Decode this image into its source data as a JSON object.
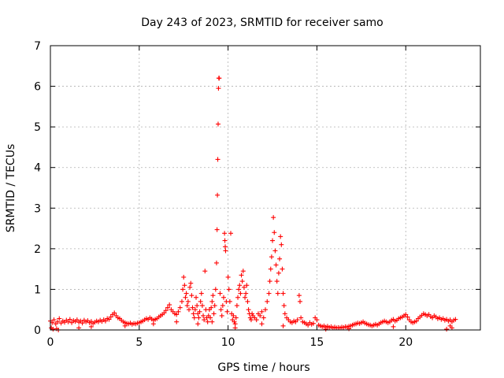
{
  "chart_data": {
    "type": "scatter",
    "title": "Day 243 of 2023, SRMTID for receiver samo",
    "xlabel": "GPS time / hours",
    "ylabel": "SRMTID / TECUs",
    "xlim": [
      0,
      24.2
    ],
    "ylim": [
      0,
      7
    ],
    "xticks": [
      "0",
      "5",
      "10",
      "15",
      "20"
    ],
    "yticks": [
      "0",
      "1",
      "2",
      "3",
      "4",
      "5",
      "6",
      "7"
    ],
    "xtick_values": [
      0,
      5,
      10,
      15,
      20
    ],
    "ytick_values": [
      0,
      1,
      2,
      3,
      4,
      5,
      6,
      7
    ],
    "grid": true,
    "marker": "+",
    "color": "#ff0000",
    "series": [
      {
        "name": "samo",
        "points": [
          [
            0.0,
            0.22
          ],
          [
            0.1,
            0.18
          ],
          [
            0.2,
            0.25
          ],
          [
            0.3,
            0.15
          ],
          [
            0.4,
            0.2
          ],
          [
            0.5,
            0.28
          ],
          [
            0.6,
            0.17
          ],
          [
            0.7,
            0.22
          ],
          [
            0.8,
            0.19
          ],
          [
            0.9,
            0.24
          ],
          [
            1.0,
            0.2
          ],
          [
            1.1,
            0.26
          ],
          [
            1.2,
            0.18
          ],
          [
            1.3,
            0.23
          ],
          [
            1.4,
            0.21
          ],
          [
            1.5,
            0.25
          ],
          [
            1.6,
            0.19
          ],
          [
            1.7,
            0.22
          ],
          [
            1.8,
            0.17
          ],
          [
            1.9,
            0.24
          ],
          [
            2.0,
            0.2
          ],
          [
            2.1,
            0.23
          ],
          [
            2.2,
            0.18
          ],
          [
            2.3,
            0.21
          ],
          [
            2.4,
            0.16
          ],
          [
            2.5,
            0.19
          ],
          [
            2.6,
            0.22
          ],
          [
            2.7,
            0.2
          ],
          [
            2.8,
            0.24
          ],
          [
            2.9,
            0.21
          ],
          [
            3.0,
            0.25
          ],
          [
            3.1,
            0.22
          ],
          [
            3.2,
            0.28
          ],
          [
            3.3,
            0.26
          ],
          [
            3.4,
            0.32
          ],
          [
            3.5,
            0.38
          ],
          [
            3.6,
            0.42
          ],
          [
            3.7,
            0.35
          ],
          [
            3.8,
            0.3
          ],
          [
            3.9,
            0.28
          ],
          [
            4.0,
            0.24
          ],
          [
            4.1,
            0.2
          ],
          [
            4.2,
            0.18
          ],
          [
            4.3,
            0.16
          ],
          [
            4.4,
            0.15
          ],
          [
            4.5,
            0.17
          ],
          [
            4.6,
            0.14
          ],
          [
            4.7,
            0.16
          ],
          [
            4.8,
            0.15
          ],
          [
            4.9,
            0.17
          ],
          [
            5.0,
            0.18
          ],
          [
            5.1,
            0.2
          ],
          [
            5.2,
            0.22
          ],
          [
            5.3,
            0.25
          ],
          [
            5.4,
            0.28
          ],
          [
            5.5,
            0.26
          ],
          [
            5.6,
            0.3
          ],
          [
            5.7,
            0.27
          ],
          [
            5.8,
            0.24
          ],
          [
            5.9,
            0.26
          ],
          [
            6.0,
            0.28
          ],
          [
            6.1,
            0.32
          ],
          [
            6.2,
            0.35
          ],
          [
            6.3,
            0.38
          ],
          [
            6.4,
            0.42
          ],
          [
            6.5,
            0.48
          ],
          [
            6.6,
            0.55
          ],
          [
            6.7,
            0.62
          ],
          [
            6.8,
            0.5
          ],
          [
            6.9,
            0.45
          ],
          [
            7.0,
            0.4
          ],
          [
            7.1,
            0.38
          ],
          [
            7.2,
            0.45
          ],
          [
            7.3,
            0.55
          ],
          [
            7.4,
            0.7
          ],
          [
            7.45,
            1.0
          ],
          [
            7.5,
            1.3
          ],
          [
            7.55,
            1.1
          ],
          [
            7.6,
            0.8
          ],
          [
            7.65,
            0.9
          ],
          [
            7.7,
            0.6
          ],
          [
            7.75,
            0.7
          ],
          [
            7.8,
            0.5
          ],
          [
            7.85,
            1.05
          ],
          [
            7.9,
            1.15
          ],
          [
            7.95,
            0.85
          ],
          [
            8.0,
            0.55
          ],
          [
            8.05,
            0.4
          ],
          [
            8.1,
            0.3
          ],
          [
            8.15,
            0.5
          ],
          [
            8.2,
            0.8
          ],
          [
            8.25,
            0.6
          ],
          [
            8.3,
            0.4
          ],
          [
            8.35,
            0.3
          ],
          [
            8.4,
            0.45
          ],
          [
            8.45,
            0.7
          ],
          [
            8.5,
            0.9
          ],
          [
            8.55,
            0.6
          ],
          [
            8.6,
            0.35
          ],
          [
            8.65,
            0.25
          ],
          [
            8.7,
            1.45
          ],
          [
            8.75,
            0.5
          ],
          [
            8.8,
            0.3
          ],
          [
            8.85,
            0.2
          ],
          [
            8.9,
            0.35
          ],
          [
            8.95,
            0.5
          ],
          [
            9.0,
            0.3
          ],
          [
            9.05,
            0.55
          ],
          [
            9.1,
            0.7
          ],
          [
            9.15,
            0.85
          ],
          [
            9.2,
            0.4
          ],
          [
            9.25,
            0.6
          ],
          [
            9.3,
            1.0
          ],
          [
            9.35,
            1.65
          ],
          [
            9.38,
            2.47
          ],
          [
            9.4,
            3.32
          ],
          [
            9.42,
            4.2
          ],
          [
            9.44,
            5.07
          ],
          [
            9.46,
            5.95
          ],
          [
            9.48,
            6.2
          ],
          [
            9.5,
            6.2
          ],
          [
            9.55,
            0.9
          ],
          [
            9.6,
            0.5
          ],
          [
            9.65,
            0.35
          ],
          [
            9.7,
            0.6
          ],
          [
            9.75,
            0.8
          ],
          [
            9.8,
            2.38
          ],
          [
            9.82,
            2.2
          ],
          [
            9.84,
            2.05
          ],
          [
            9.86,
            1.95
          ],
          [
            9.9,
            0.7
          ],
          [
            9.95,
            0.45
          ],
          [
            10.0,
            1.3
          ],
          [
            10.05,
            1.0
          ],
          [
            10.1,
            0.7
          ],
          [
            10.15,
            2.38
          ],
          [
            10.2,
            0.4
          ],
          [
            10.25,
            0.25
          ],
          [
            10.3,
            0.35
          ],
          [
            10.35,
            0.2
          ],
          [
            10.4,
            0.15
          ],
          [
            10.45,
            0.3
          ],
          [
            10.5,
            0.6
          ],
          [
            10.55,
            0.8
          ],
          [
            10.6,
            1.0
          ],
          [
            10.65,
            1.1
          ],
          [
            10.7,
            0.9
          ],
          [
            10.75,
            1.35
          ],
          [
            10.8,
            1.2
          ],
          [
            10.85,
            1.45
          ],
          [
            10.9,
            1.05
          ],
          [
            10.95,
            0.8
          ],
          [
            11.0,
            0.9
          ],
          [
            11.05,
            1.1
          ],
          [
            11.1,
            0.7
          ],
          [
            11.15,
            0.5
          ],
          [
            11.2,
            0.4
          ],
          [
            11.25,
            0.3
          ],
          [
            11.3,
            0.25
          ],
          [
            11.35,
            0.4
          ],
          [
            11.4,
            0.35
          ],
          [
            11.5,
            0.3
          ],
          [
            11.6,
            0.25
          ],
          [
            11.7,
            0.4
          ],
          [
            11.8,
            0.35
          ],
          [
            11.9,
            0.45
          ],
          [
            12.0,
            0.3
          ],
          [
            12.1,
            0.5
          ],
          [
            12.2,
            0.7
          ],
          [
            12.3,
            0.9
          ],
          [
            12.35,
            1.2
          ],
          [
            12.4,
            1.5
          ],
          [
            12.45,
            1.8
          ],
          [
            12.5,
            2.2
          ],
          [
            12.55,
            2.77
          ],
          [
            12.6,
            2.4
          ],
          [
            12.65,
            1.95
          ],
          [
            12.7,
            1.6
          ],
          [
            12.75,
            1.2
          ],
          [
            12.8,
            0.9
          ],
          [
            12.85,
            1.4
          ],
          [
            12.9,
            1.75
          ],
          [
            12.95,
            2.3
          ],
          [
            13.0,
            2.1
          ],
          [
            13.05,
            1.5
          ],
          [
            13.1,
            0.9
          ],
          [
            13.15,
            0.6
          ],
          [
            13.2,
            0.4
          ],
          [
            13.3,
            0.3
          ],
          [
            13.4,
            0.25
          ],
          [
            13.5,
            0.2
          ],
          [
            13.6,
            0.18
          ],
          [
            13.7,
            0.22
          ],
          [
            13.8,
            0.2
          ],
          [
            13.9,
            0.25
          ],
          [
            14.0,
            0.85
          ],
          [
            14.05,
            0.7
          ],
          [
            14.1,
            0.3
          ],
          [
            14.2,
            0.2
          ],
          [
            14.3,
            0.18
          ],
          [
            14.4,
            0.15
          ],
          [
            14.5,
            0.12
          ],
          [
            14.6,
            0.18
          ],
          [
            14.7,
            0.14
          ],
          [
            14.8,
            0.16
          ],
          [
            14.9,
            0.3
          ],
          [
            15.0,
            0.25
          ],
          [
            15.1,
            0.12
          ],
          [
            15.2,
            0.1
          ],
          [
            15.3,
            0.08
          ],
          [
            15.4,
            0.1
          ],
          [
            15.5,
            0.07
          ],
          [
            15.6,
            0.09
          ],
          [
            15.7,
            0.06
          ],
          [
            15.8,
            0.08
          ],
          [
            15.9,
            0.05
          ],
          [
            16.0,
            0.07
          ],
          [
            16.1,
            0.05
          ],
          [
            16.2,
            0.06
          ],
          [
            16.3,
            0.05
          ],
          [
            16.4,
            0.07
          ],
          [
            16.5,
            0.06
          ],
          [
            16.6,
            0.08
          ],
          [
            16.7,
            0.07
          ],
          [
            16.8,
            0.09
          ],
          [
            16.9,
            0.1
          ],
          [
            17.0,
            0.12
          ],
          [
            17.1,
            0.14
          ],
          [
            17.2,
            0.15
          ],
          [
            17.3,
            0.17
          ],
          [
            17.4,
            0.16
          ],
          [
            17.5,
            0.18
          ],
          [
            17.6,
            0.2
          ],
          [
            17.7,
            0.17
          ],
          [
            17.8,
            0.15
          ],
          [
            17.9,
            0.13
          ],
          [
            18.0,
            0.12
          ],
          [
            18.1,
            0.1
          ],
          [
            18.2,
            0.12
          ],
          [
            18.3,
            0.14
          ],
          [
            18.4,
            0.12
          ],
          [
            18.5,
            0.15
          ],
          [
            18.6,
            0.18
          ],
          [
            18.7,
            0.2
          ],
          [
            18.8,
            0.22
          ],
          [
            18.9,
            0.2
          ],
          [
            19.0,
            0.18
          ],
          [
            19.1,
            0.2
          ],
          [
            19.2,
            0.24
          ],
          [
            19.3,
            0.26
          ],
          [
            19.4,
            0.22
          ],
          [
            19.5,
            0.24
          ],
          [
            19.6,
            0.28
          ],
          [
            19.7,
            0.3
          ],
          [
            19.8,
            0.32
          ],
          [
            19.9,
            0.35
          ],
          [
            20.0,
            0.38
          ],
          [
            20.1,
            0.32
          ],
          [
            20.2,
            0.25
          ],
          [
            20.3,
            0.2
          ],
          [
            20.4,
            0.18
          ],
          [
            20.5,
            0.2
          ],
          [
            20.6,
            0.22
          ],
          [
            20.7,
            0.28
          ],
          [
            20.8,
            0.32
          ],
          [
            20.9,
            0.36
          ],
          [
            21.0,
            0.4
          ],
          [
            21.1,
            0.38
          ],
          [
            21.2,
            0.35
          ],
          [
            21.3,
            0.38
          ],
          [
            21.4,
            0.33
          ],
          [
            21.5,
            0.3
          ],
          [
            21.6,
            0.35
          ],
          [
            21.7,
            0.32
          ],
          [
            21.8,
            0.28
          ],
          [
            21.9,
            0.3
          ],
          [
            22.0,
            0.26
          ],
          [
            22.1,
            0.28
          ],
          [
            22.2,
            0.24
          ],
          [
            22.3,
            0.26
          ],
          [
            22.4,
            0.22
          ],
          [
            22.5,
            0.25
          ],
          [
            22.6,
            0.2
          ],
          [
            22.7,
            0.24
          ],
          [
            22.8,
            0.26
          ],
          [
            0.05,
            0.05
          ],
          [
            0.15,
            0.02
          ],
          [
            0.35,
            0.03
          ],
          [
            0.45,
            0.0
          ],
          [
            1.6,
            0.05
          ],
          [
            2.3,
            0.08
          ],
          [
            4.2,
            0.1
          ],
          [
            5.8,
            0.15
          ],
          [
            7.1,
            0.2
          ],
          [
            8.3,
            0.15
          ],
          [
            9.1,
            0.2
          ],
          [
            10.4,
            0.05
          ],
          [
            11.9,
            0.15
          ],
          [
            13.1,
            0.1
          ],
          [
            15.5,
            0.02
          ],
          [
            16.8,
            0.03
          ],
          [
            19.3,
            0.08
          ],
          [
            22.3,
            0.02
          ],
          [
            22.5,
            0.1
          ],
          [
            22.6,
            0.05
          ]
        ]
      }
    ]
  }
}
